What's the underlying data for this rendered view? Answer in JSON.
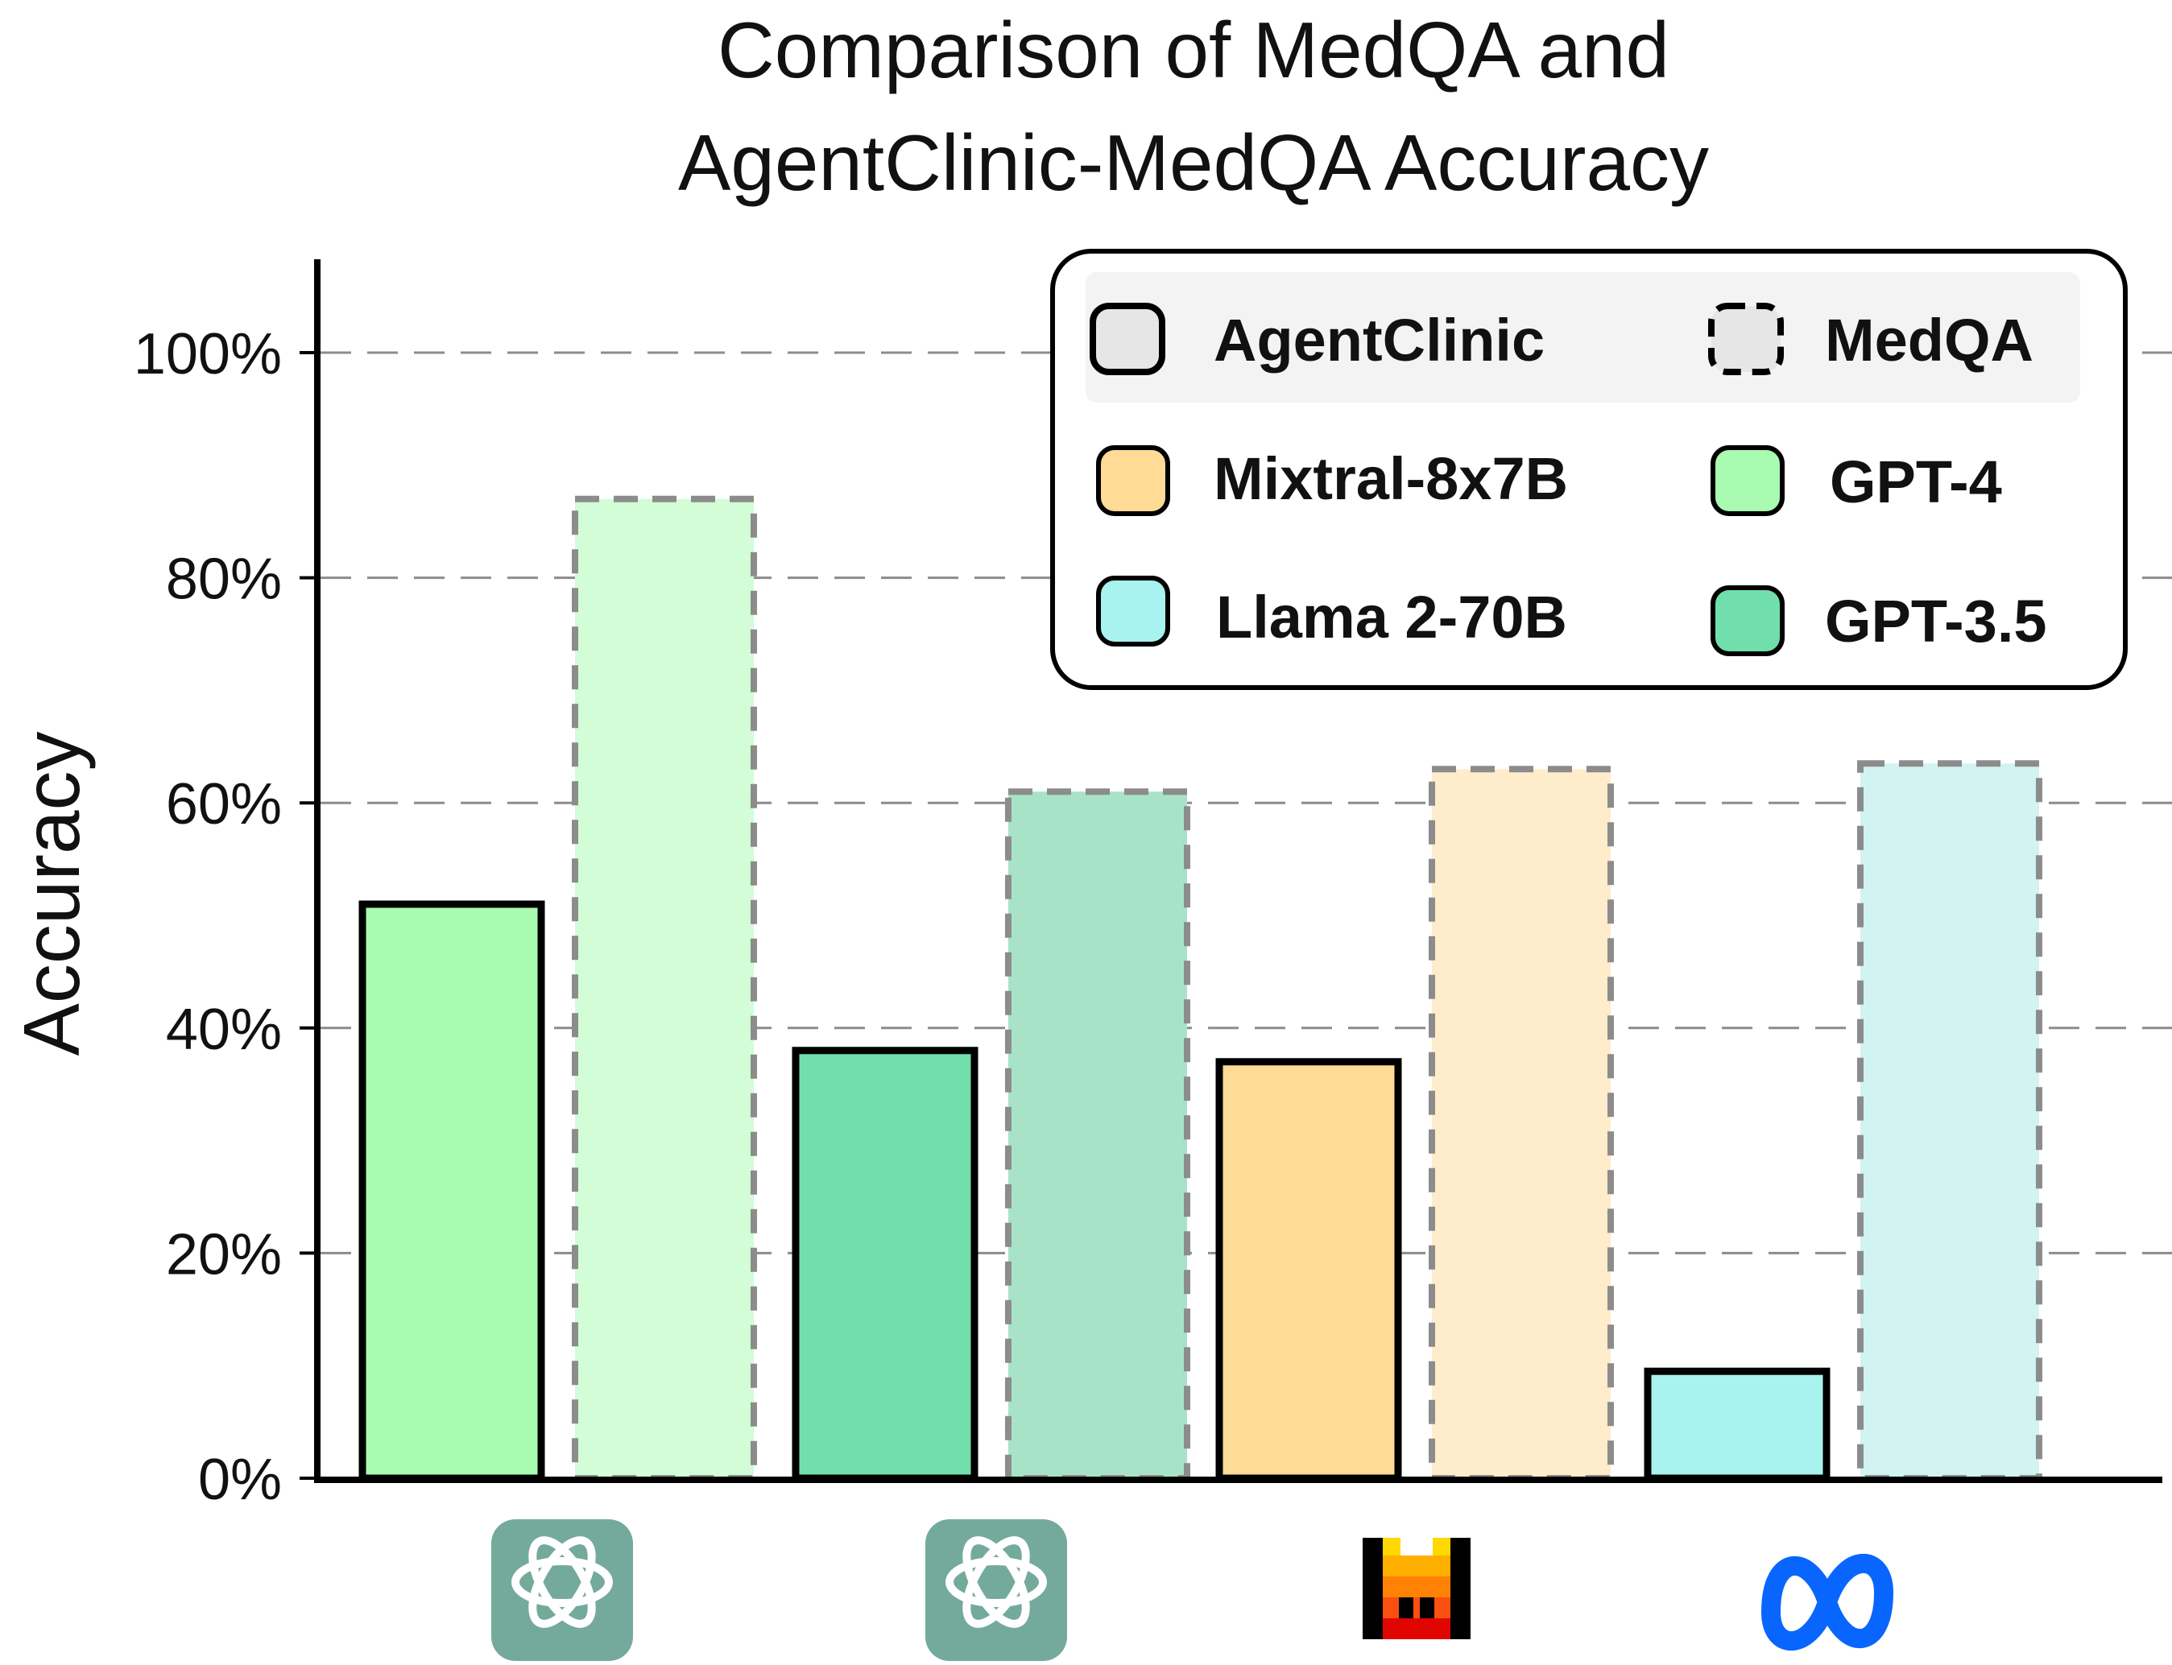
{
  "chart_data": {
    "type": "bar",
    "title": [
      "Comparison of MedQA and",
      "AgentClinic-MedQA Accuracy"
    ],
    "xlabel": "",
    "ylabel": "Accuracy",
    "ylim": [
      0,
      108
    ],
    "yticks": [
      "0%",
      "20%",
      "40%",
      "60%",
      "80%",
      "100%"
    ],
    "ytick_values": [
      0,
      20,
      40,
      60,
      80,
      100
    ],
    "grid": "horizontal dashed",
    "legend_placement": "top-right",
    "categories": [
      "GPT-4",
      "GPT-3.5",
      "Mixtral-8x7B",
      "Llama 2-70B"
    ],
    "category_icons": [
      "openai-logo-icon",
      "openai-logo-icon",
      "mistral-logo-icon",
      "meta-logo-icon"
    ],
    "series": [
      {
        "name": "AgentClinic",
        "style": "solid",
        "values": [
          51,
          38,
          37,
          9.5
        ]
      },
      {
        "name": "MedQA",
        "style": "dashed",
        "values": [
          87,
          61,
          63,
          63.5
        ]
      }
    ],
    "colors": {
      "GPT-4": {
        "solid": "#a8fbb0",
        "faded": "#d2fdd6"
      },
      "GPT-3.5": {
        "solid": "#70dfab",
        "faded": "#a8e3c8"
      },
      "Mixtral-8x7B": {
        "solid": "#ffdb95",
        "faded": "#ffeccb"
      },
      "Llama 2-70B": {
        "solid": "#a8f3ef",
        "faded": "#d1f3f1"
      }
    },
    "legend": {
      "style_entries": [
        {
          "label": "AgentClinic",
          "style": "solid",
          "color": "#e6e6e6"
        },
        {
          "label": "MedQA",
          "style": "dashed",
          "color": "#e6e6e6"
        }
      ],
      "model_entries": [
        {
          "label": "Mixtral-8x7B",
          "color": "#ffdb95"
        },
        {
          "label": "GPT-4",
          "color": "#a8fbb0"
        },
        {
          "label": "Llama 2-70B",
          "color": "#a8f3ef"
        },
        {
          "label": "GPT-3.5",
          "color": "#70dfab"
        }
      ]
    }
  }
}
